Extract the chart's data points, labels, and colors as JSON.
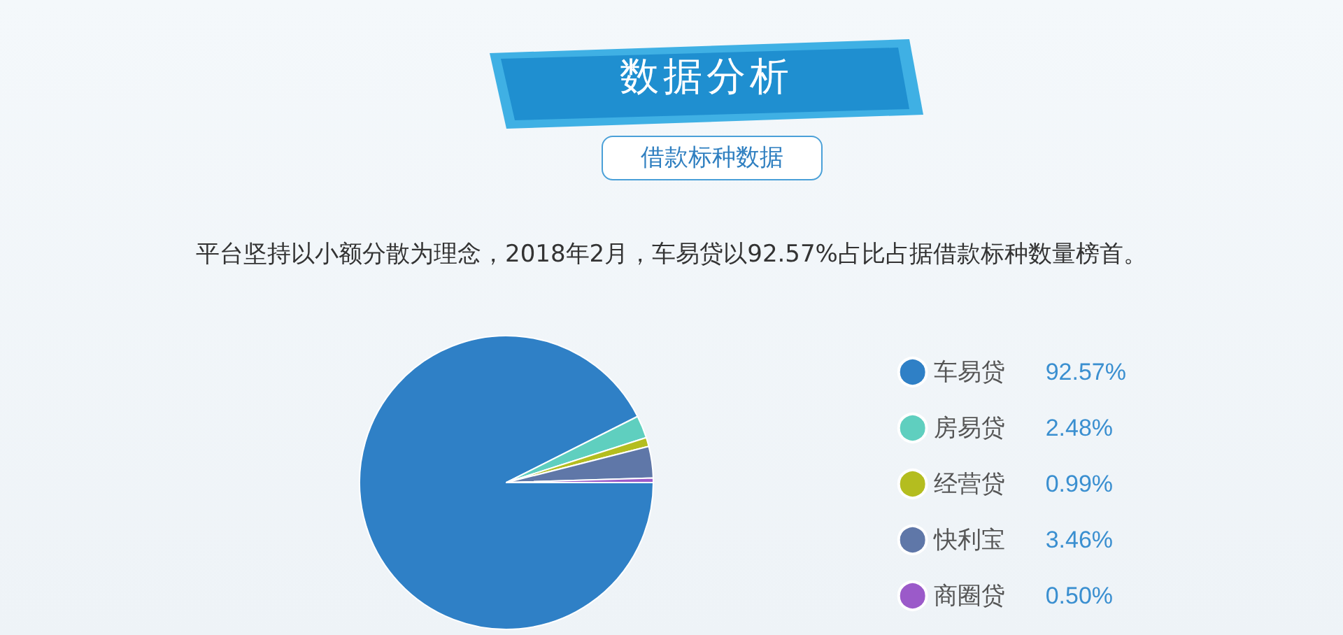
{
  "chart_data": {
    "type": "pie",
    "title": "数据分析",
    "subtitle": "借款标种数据",
    "annotations": [
      "平台坚持以小额分散为理念，2018年2月，车易贷以92.57%占比占据借款标种数量榜首。"
    ],
    "categories": [
      "车易贷",
      "房易贷",
      "经营贷",
      "快利宝",
      "商圈贷"
    ],
    "values": [
      92.57,
      2.48,
      0.99,
      3.46,
      0.5
    ],
    "value_labels": [
      "92.57%",
      "2.48%",
      "0.99%",
      "3.46%",
      "0.50%"
    ],
    "colors": [
      "#2f80c6",
      "#5fcfbf",
      "#b4bd1f",
      "#5f77a8",
      "#9b5ac9"
    ],
    "legend": "right"
  }
}
